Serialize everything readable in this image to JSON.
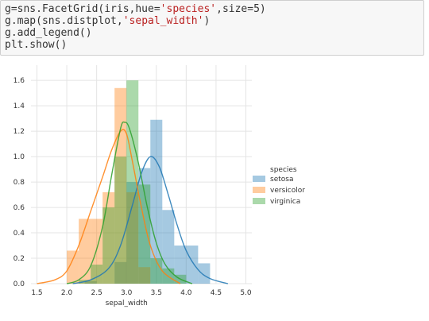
{
  "code_cell": {
    "lines": [
      [
        {
          "t": "g=sns.FacetGrid(iris,hue="
        },
        {
          "t": "'species'",
          "s": 1
        },
        {
          "t": ",size=5)"
        }
      ],
      [
        {
          "t": "g.map(sns.distplot,"
        },
        {
          "t": "'sepal_width'",
          "s": 1
        },
        {
          "t": ")"
        }
      ],
      [
        {
          "t": "g.add_legend()"
        }
      ],
      [
        {
          "t": "plt.show()"
        }
      ]
    ]
  },
  "chart_data": {
    "type": "histogram",
    "xlabel": "sepal_width",
    "ylabel": "",
    "xlim": [
      1.4,
      5.1
    ],
    "ylim": [
      0.0,
      1.72
    ],
    "xticks": [
      "1.5",
      "2.0",
      "2.5",
      "3.0",
      "3.5",
      "4.0",
      "4.5",
      "5.0"
    ],
    "yticks": [
      "0.0",
      "0.2",
      "0.4",
      "0.6",
      "0.8",
      "1.0",
      "1.2",
      "1.4",
      "1.6"
    ],
    "grid": true,
    "legend": {
      "title": "species",
      "placement": "right",
      "entries": [
        "setosa",
        "versicolor",
        "virginica"
      ]
    },
    "series": [
      {
        "name": "setosa",
        "color": "#1f77b4",
        "bins": [
          [
            2.3,
            2.5,
            0.02
          ],
          [
            2.8,
            3.0,
            0.17
          ],
          [
            3.0,
            3.2,
            0.8
          ],
          [
            3.2,
            3.4,
            0.91
          ],
          [
            3.4,
            3.6,
            1.29
          ],
          [
            3.6,
            3.8,
            0.58
          ],
          [
            3.8,
            4.0,
            0.3
          ],
          [
            4.0,
            4.2,
            0.3
          ],
          [
            4.2,
            4.4,
            0.16
          ]
        ],
        "kde": [
          [
            2.1,
            0.0
          ],
          [
            2.4,
            0.03
          ],
          [
            2.7,
            0.12
          ],
          [
            2.9,
            0.3
          ],
          [
            3.1,
            0.62
          ],
          [
            3.25,
            0.87
          ],
          [
            3.4,
            1.0
          ],
          [
            3.55,
            0.92
          ],
          [
            3.7,
            0.7
          ],
          [
            3.85,
            0.46
          ],
          [
            4.0,
            0.26
          ],
          [
            4.2,
            0.11
          ],
          [
            4.4,
            0.04
          ],
          [
            4.7,
            0.0
          ]
        ]
      },
      {
        "name": "versicolor",
        "color": "#ff7f0e",
        "bins": [
          [
            2.0,
            2.2,
            0.26
          ],
          [
            2.2,
            2.4,
            0.51
          ],
          [
            2.4,
            2.6,
            0.51
          ],
          [
            2.6,
            2.8,
            0.72
          ],
          [
            2.8,
            3.0,
            1.54
          ],
          [
            3.0,
            3.2,
            0.72
          ],
          [
            3.2,
            3.4,
            0.13
          ]
        ],
        "kde": [
          [
            1.5,
            0.0
          ],
          [
            1.8,
            0.03
          ],
          [
            2.0,
            0.1
          ],
          [
            2.2,
            0.3
          ],
          [
            2.4,
            0.57
          ],
          [
            2.6,
            0.84
          ],
          [
            2.75,
            1.05
          ],
          [
            2.9,
            1.2
          ],
          [
            3.0,
            1.18
          ],
          [
            3.1,
            0.96
          ],
          [
            3.25,
            0.6
          ],
          [
            3.4,
            0.3
          ],
          [
            3.6,
            0.1
          ],
          [
            3.9,
            0.0
          ]
        ]
      },
      {
        "name": "virginica",
        "color": "#2ca02c",
        "bins": [
          [
            2.2,
            2.4,
            0.03
          ],
          [
            2.4,
            2.6,
            0.15
          ],
          [
            2.6,
            2.8,
            0.6
          ],
          [
            2.8,
            3.0,
            1.0
          ],
          [
            3.0,
            3.2,
            1.6
          ],
          [
            3.2,
            3.4,
            0.78
          ],
          [
            3.4,
            3.6,
            0.2
          ],
          [
            3.6,
            3.8,
            0.12
          ],
          [
            3.8,
            4.0,
            0.07
          ]
        ],
        "kde": [
          [
            2.0,
            0.0
          ],
          [
            2.2,
            0.03
          ],
          [
            2.4,
            0.14
          ],
          [
            2.6,
            0.45
          ],
          [
            2.75,
            0.85
          ],
          [
            2.9,
            1.22
          ],
          [
            2.97,
            1.27
          ],
          [
            3.05,
            1.22
          ],
          [
            3.2,
            0.95
          ],
          [
            3.35,
            0.6
          ],
          [
            3.5,
            0.32
          ],
          [
            3.65,
            0.15
          ],
          [
            3.85,
            0.05
          ],
          [
            4.1,
            0.0
          ]
        ]
      }
    ]
  }
}
